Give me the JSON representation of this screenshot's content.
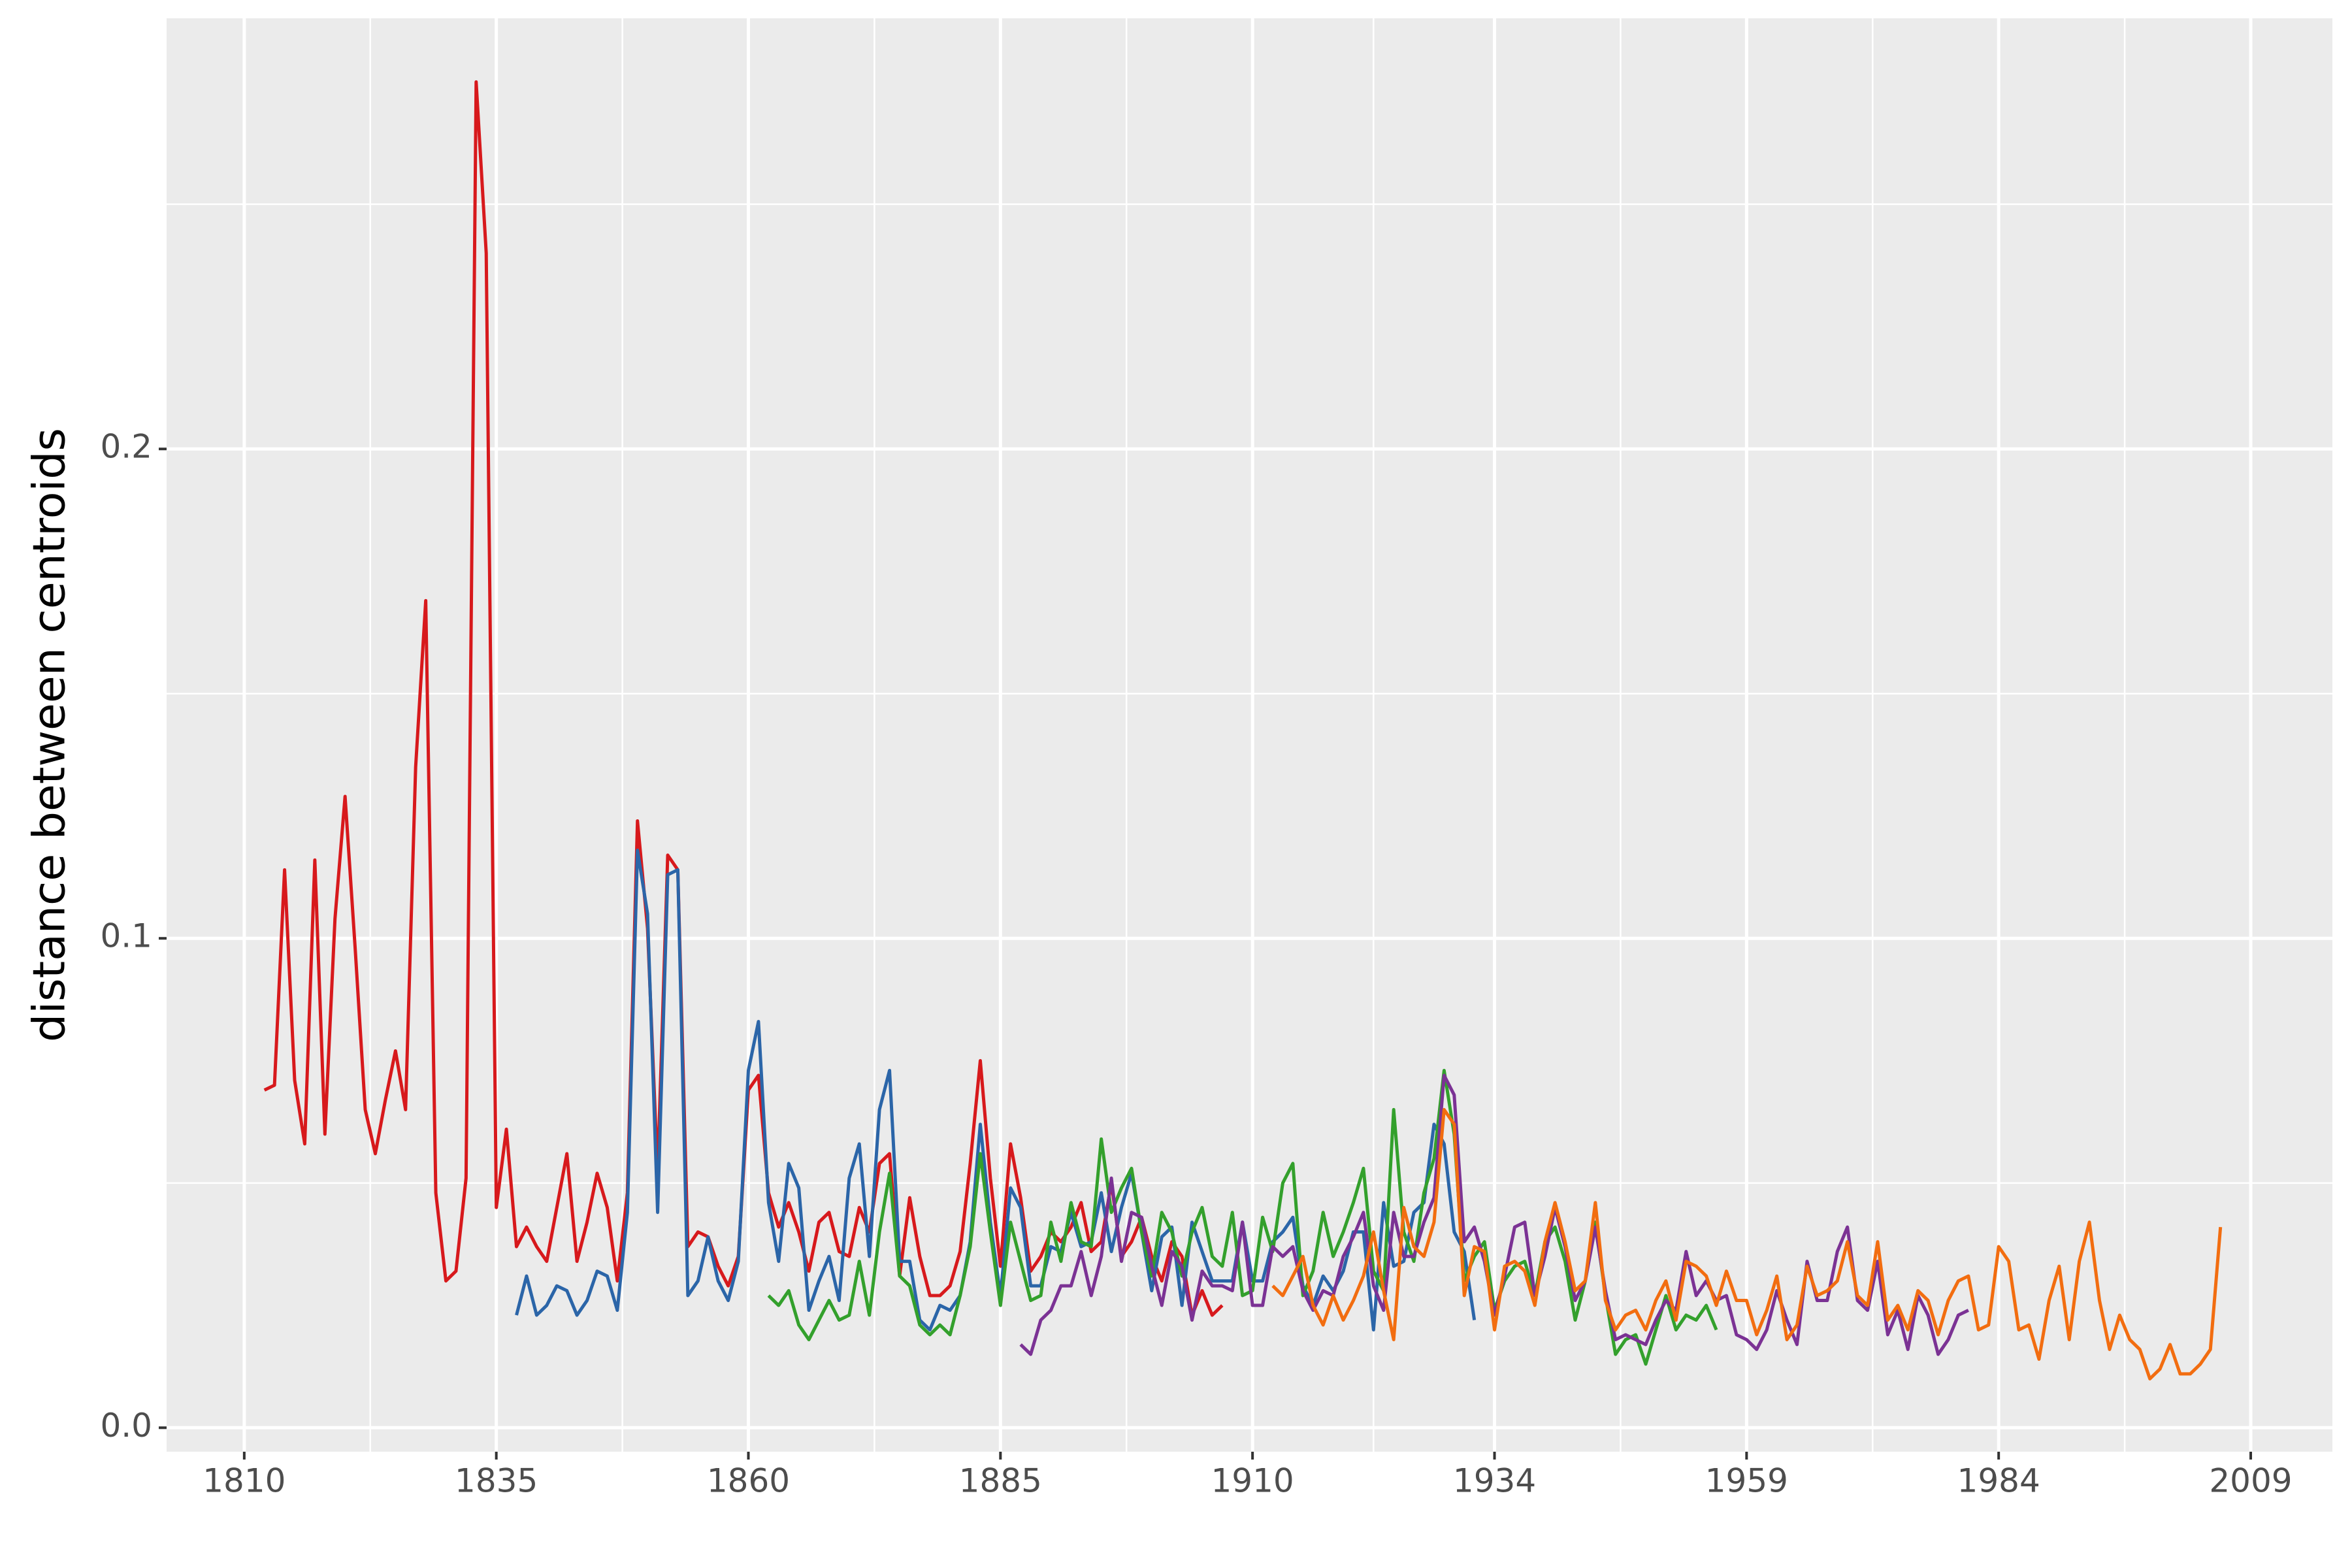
{
  "chart_data": {
    "type": "line",
    "y_label": "distance between centroids",
    "xlim": [
      1802.3,
      2017.1
    ],
    "ylim": [
      -0.0049,
      0.288
    ],
    "xticks": [
      1810,
      1835,
      1860,
      1885,
      1910,
      1934,
      1959,
      1984,
      2009
    ],
    "yticks": [
      {
        "value": 0,
        "label": "0.0"
      },
      0.1,
      0.2
    ],
    "grid": true,
    "series": [
      {
        "color": "#d7191c",
        "x": [
          1812,
          1813,
          1814,
          1815,
          1816,
          1817,
          1818,
          1819,
          1820,
          1821,
          1822,
          1823,
          1824,
          1825,
          1826,
          1827,
          1828,
          1829,
          1830,
          1831,
          1832,
          1833,
          1834,
          1835,
          1836,
          1837,
          1838,
          1839,
          1840,
          1841,
          1842,
          1843,
          1844,
          1845,
          1846,
          1847,
          1848,
          1849,
          1850,
          1851,
          1852,
          1853,
          1854,
          1855,
          1856,
          1857,
          1858,
          1859,
          1860,
          1861,
          1862,
          1863,
          1864,
          1865,
          1866,
          1867,
          1868,
          1869,
          1870,
          1871,
          1872,
          1873,
          1874,
          1875,
          1876,
          1877,
          1878,
          1879,
          1880,
          1881,
          1882,
          1883,
          1884,
          1885,
          1886,
          1887,
          1888,
          1889,
          1890,
          1891,
          1892,
          1893,
          1894,
          1895,
          1896,
          1897,
          1898,
          1899,
          1900,
          1901,
          1902,
          1903,
          1904,
          1905,
          1906,
          1907
        ],
        "values": [
          0.069,
          0.07,
          0.114,
          0.071,
          0.058,
          0.116,
          0.06,
          0.104,
          0.129,
          0.098,
          0.065,
          0.056,
          0.067,
          0.077,
          0.065,
          0.135,
          0.169,
          0.048,
          0.03,
          0.032,
          0.051,
          0.275,
          0.24,
          0.045,
          0.061,
          0.037,
          0.041,
          0.037,
          0.034,
          0.045,
          0.056,
          0.034,
          0.042,
          0.052,
          0.045,
          0.03,
          0.048,
          0.124,
          0.102,
          0.052,
          0.117,
          0.114,
          0.037,
          0.04,
          0.039,
          0.033,
          0.029,
          0.035,
          0.069,
          0.072,
          0.048,
          0.041,
          0.046,
          0.04,
          0.032,
          0.042,
          0.044,
          0.036,
          0.035,
          0.045,
          0.04,
          0.054,
          0.056,
          0.031,
          0.047,
          0.035,
          0.027,
          0.027,
          0.029,
          0.036,
          0.054,
          0.075,
          0.051,
          0.033,
          0.058,
          0.047,
          0.032,
          0.035,
          0.04,
          0.038,
          0.041,
          0.046,
          0.036,
          0.038,
          0.05,
          0.035,
          0.038,
          0.043,
          0.035,
          0.03,
          0.038,
          0.035,
          0.023,
          0.028,
          0.023,
          0.025
        ]
      },
      {
        "color": "#2b65a8",
        "x": [
          1837,
          1838,
          1839,
          1840,
          1841,
          1842,
          1843,
          1844,
          1845,
          1846,
          1847,
          1848,
          1849,
          1850,
          1851,
          1852,
          1853,
          1854,
          1855,
          1856,
          1857,
          1858,
          1859,
          1860,
          1861,
          1862,
          1863,
          1864,
          1865,
          1866,
          1867,
          1868,
          1869,
          1870,
          1871,
          1872,
          1873,
          1874,
          1875,
          1876,
          1877,
          1878,
          1879,
          1880,
          1881,
          1882,
          1883,
          1884,
          1885,
          1886,
          1887,
          1888,
          1889,
          1890,
          1891,
          1892,
          1893,
          1894,
          1895,
          1896,
          1897,
          1898,
          1899,
          1900,
          1901,
          1902,
          1903,
          1904,
          1905,
          1906,
          1907,
          1908,
          1909,
          1910,
          1911,
          1912,
          1913,
          1914,
          1915,
          1916,
          1917,
          1918,
          1919,
          1920,
          1921,
          1922,
          1923,
          1924,
          1925,
          1926,
          1927,
          1928,
          1929,
          1930,
          1931,
          1932
        ],
        "values": [
          0.023,
          0.031,
          0.023,
          0.025,
          0.029,
          0.028,
          0.023,
          0.026,
          0.032,
          0.031,
          0.024,
          0.044,
          0.118,
          0.105,
          0.044,
          0.113,
          0.114,
          0.027,
          0.03,
          0.039,
          0.03,
          0.026,
          0.034,
          0.073,
          0.083,
          0.046,
          0.034,
          0.054,
          0.049,
          0.024,
          0.03,
          0.035,
          0.026,
          0.051,
          0.058,
          0.035,
          0.065,
          0.073,
          0.034,
          0.034,
          0.022,
          0.02,
          0.025,
          0.024,
          0.027,
          0.038,
          0.062,
          0.042,
          0.027,
          0.049,
          0.045,
          0.029,
          0.029,
          0.037,
          0.036,
          0.044,
          0.037,
          0.038,
          0.048,
          0.036,
          0.045,
          0.052,
          0.04,
          0.028,
          0.039,
          0.041,
          0.025,
          0.042,
          0.036,
          0.03,
          0.03,
          0.03,
          0.042,
          0.03,
          0.03,
          0.038,
          0.04,
          0.043,
          0.029,
          0.025,
          0.031,
          0.028,
          0.032,
          0.04,
          0.04,
          0.02,
          0.046,
          0.033,
          0.034,
          0.044,
          0.046,
          0.062,
          0.058,
          0.04,
          0.036,
          0.022
        ]
      },
      {
        "color": "#33a02c",
        "x": [
          1862,
          1863,
          1864,
          1865,
          1866,
          1867,
          1868,
          1869,
          1870,
          1871,
          1872,
          1873,
          1874,
          1875,
          1876,
          1877,
          1878,
          1879,
          1880,
          1881,
          1882,
          1883,
          1884,
          1885,
          1886,
          1887,
          1888,
          1889,
          1890,
          1891,
          1892,
          1893,
          1894,
          1895,
          1896,
          1897,
          1898,
          1899,
          1900,
          1901,
          1902,
          1903,
          1904,
          1905,
          1906,
          1907,
          1908,
          1909,
          1910,
          1911,
          1912,
          1913,
          1914,
          1915,
          1916,
          1917,
          1918,
          1919,
          1920,
          1921,
          1922,
          1923,
          1924,
          1925,
          1926,
          1927,
          1928,
          1929,
          1930,
          1931,
          1932,
          1933,
          1934,
          1935,
          1936,
          1937,
          1938,
          1939,
          1940,
          1941,
          1942,
          1943,
          1944,
          1945,
          1946,
          1947,
          1948,
          1949,
          1950,
          1951,
          1952,
          1953,
          1954,
          1955,
          1956
        ],
        "values": [
          0.027,
          0.025,
          0.028,
          0.021,
          0.018,
          0.022,
          0.026,
          0.022,
          0.023,
          0.034,
          0.023,
          0.04,
          0.052,
          0.031,
          0.029,
          0.021,
          0.019,
          0.021,
          0.019,
          0.027,
          0.037,
          0.056,
          0.04,
          0.025,
          0.042,
          0.034,
          0.026,
          0.027,
          0.042,
          0.034,
          0.046,
          0.038,
          0.037,
          0.059,
          0.044,
          0.049,
          0.053,
          0.04,
          0.031,
          0.044,
          0.04,
          0.031,
          0.04,
          0.045,
          0.035,
          0.033,
          0.044,
          0.027,
          0.028,
          0.043,
          0.036,
          0.05,
          0.054,
          0.027,
          0.032,
          0.044,
          0.035,
          0.04,
          0.046,
          0.053,
          0.032,
          0.028,
          0.065,
          0.04,
          0.034,
          0.048,
          0.055,
          0.073,
          0.06,
          0.03,
          0.035,
          0.038,
          0.024,
          0.03,
          0.033,
          0.034,
          0.027,
          0.038,
          0.041,
          0.034,
          0.022,
          0.03,
          0.042,
          0.027,
          0.015,
          0.018,
          0.019,
          0.013,
          0.02,
          0.027,
          0.02,
          0.023,
          0.022,
          0.025,
          0.02
        ]
      },
      {
        "color": "#7b3294",
        "x": [
          1887,
          1888,
          1889,
          1890,
          1891,
          1892,
          1893,
          1894,
          1895,
          1896,
          1897,
          1898,
          1899,
          1900,
          1901,
          1902,
          1903,
          1904,
          1905,
          1906,
          1907,
          1908,
          1909,
          1910,
          1911,
          1912,
          1913,
          1914,
          1915,
          1916,
          1917,
          1918,
          1919,
          1920,
          1921,
          1922,
          1923,
          1924,
          1925,
          1926,
          1927,
          1928,
          1929,
          1930,
          1931,
          1932,
          1933,
          1934,
          1935,
          1936,
          1937,
          1938,
          1939,
          1940,
          1941,
          1942,
          1943,
          1944,
          1945,
          1946,
          1947,
          1948,
          1949,
          1950,
          1951,
          1952,
          1953,
          1954,
          1955,
          1956,
          1957,
          1958,
          1959,
          1960,
          1961,
          1962,
          1963,
          1964,
          1965,
          1966,
          1967,
          1968,
          1969,
          1970,
          1971,
          1972,
          1973,
          1974,
          1975,
          1976,
          1977,
          1978,
          1979,
          1980,
          1981
        ],
        "values": [
          0.017,
          0.015,
          0.022,
          0.024,
          0.029,
          0.029,
          0.036,
          0.027,
          0.035,
          0.051,
          0.034,
          0.044,
          0.043,
          0.033,
          0.025,
          0.036,
          0.033,
          0.022,
          0.032,
          0.029,
          0.029,
          0.028,
          0.042,
          0.025,
          0.025,
          0.037,
          0.035,
          0.037,
          0.028,
          0.024,
          0.028,
          0.027,
          0.035,
          0.039,
          0.044,
          0.029,
          0.024,
          0.044,
          0.035,
          0.035,
          0.042,
          0.047,
          0.072,
          0.068,
          0.038,
          0.041,
          0.034,
          0.023,
          0.031,
          0.041,
          0.042,
          0.027,
          0.035,
          0.045,
          0.037,
          0.026,
          0.03,
          0.041,
          0.028,
          0.018,
          0.019,
          0.018,
          0.017,
          0.022,
          0.026,
          0.024,
          0.036,
          0.027,
          0.03,
          0.026,
          0.027,
          0.019,
          0.018,
          0.016,
          0.02,
          0.028,
          0.022,
          0.017,
          0.034,
          0.026,
          0.026,
          0.036,
          0.041,
          0.026,
          0.024,
          0.034,
          0.019,
          0.024,
          0.016,
          0.027,
          0.023,
          0.015,
          0.018,
          0.023,
          0.024
        ]
      },
      {
        "color": "#f26d10",
        "x": [
          1912,
          1913,
          1914,
          1915,
          1916,
          1917,
          1918,
          1919,
          1920,
          1921,
          1922,
          1923,
          1924,
          1925,
          1926,
          1927,
          1928,
          1929,
          1930,
          1931,
          1932,
          1933,
          1934,
          1935,
          1936,
          1937,
          1938,
          1939,
          1940,
          1941,
          1942,
          1943,
          1944,
          1945,
          1946,
          1947,
          1948,
          1949,
          1950,
          1951,
          1952,
          1953,
          1954,
          1955,
          1956,
          1957,
          1958,
          1959,
          1960,
          1961,
          1962,
          1963,
          1964,
          1965,
          1966,
          1967,
          1968,
          1969,
          1970,
          1971,
          1972,
          1973,
          1974,
          1975,
          1976,
          1977,
          1978,
          1979,
          1980,
          1981,
          1982,
          1983,
          1984,
          1985,
          1986,
          1987,
          1988,
          1989,
          1990,
          1991,
          1992,
          1993,
          1994,
          1995,
          1996,
          1997,
          1998,
          1999,
          2000,
          2001,
          2002,
          2003,
          2004,
          2005,
          2006
        ],
        "values": [
          0.029,
          0.027,
          0.031,
          0.035,
          0.025,
          0.021,
          0.027,
          0.022,
          0.026,
          0.031,
          0.04,
          0.028,
          0.018,
          0.045,
          0.037,
          0.035,
          0.042,
          0.065,
          0.062,
          0.027,
          0.037,
          0.036,
          0.02,
          0.033,
          0.034,
          0.032,
          0.025,
          0.038,
          0.046,
          0.038,
          0.028,
          0.03,
          0.046,
          0.026,
          0.02,
          0.023,
          0.024,
          0.02,
          0.026,
          0.03,
          0.022,
          0.034,
          0.033,
          0.031,
          0.025,
          0.032,
          0.026,
          0.026,
          0.019,
          0.024,
          0.031,
          0.018,
          0.021,
          0.033,
          0.027,
          0.028,
          0.03,
          0.038,
          0.027,
          0.025,
          0.038,
          0.022,
          0.025,
          0.02,
          0.028,
          0.026,
          0.019,
          0.026,
          0.03,
          0.031,
          0.02,
          0.021,
          0.037,
          0.034,
          0.02,
          0.021,
          0.014,
          0.026,
          0.033,
          0.018,
          0.034,
          0.042,
          0.026,
          0.016,
          0.023,
          0.018,
          0.016,
          0.01,
          0.012,
          0.017,
          0.011,
          0.011,
          0.013,
          0.016,
          0.041
        ]
      }
    ]
  }
}
